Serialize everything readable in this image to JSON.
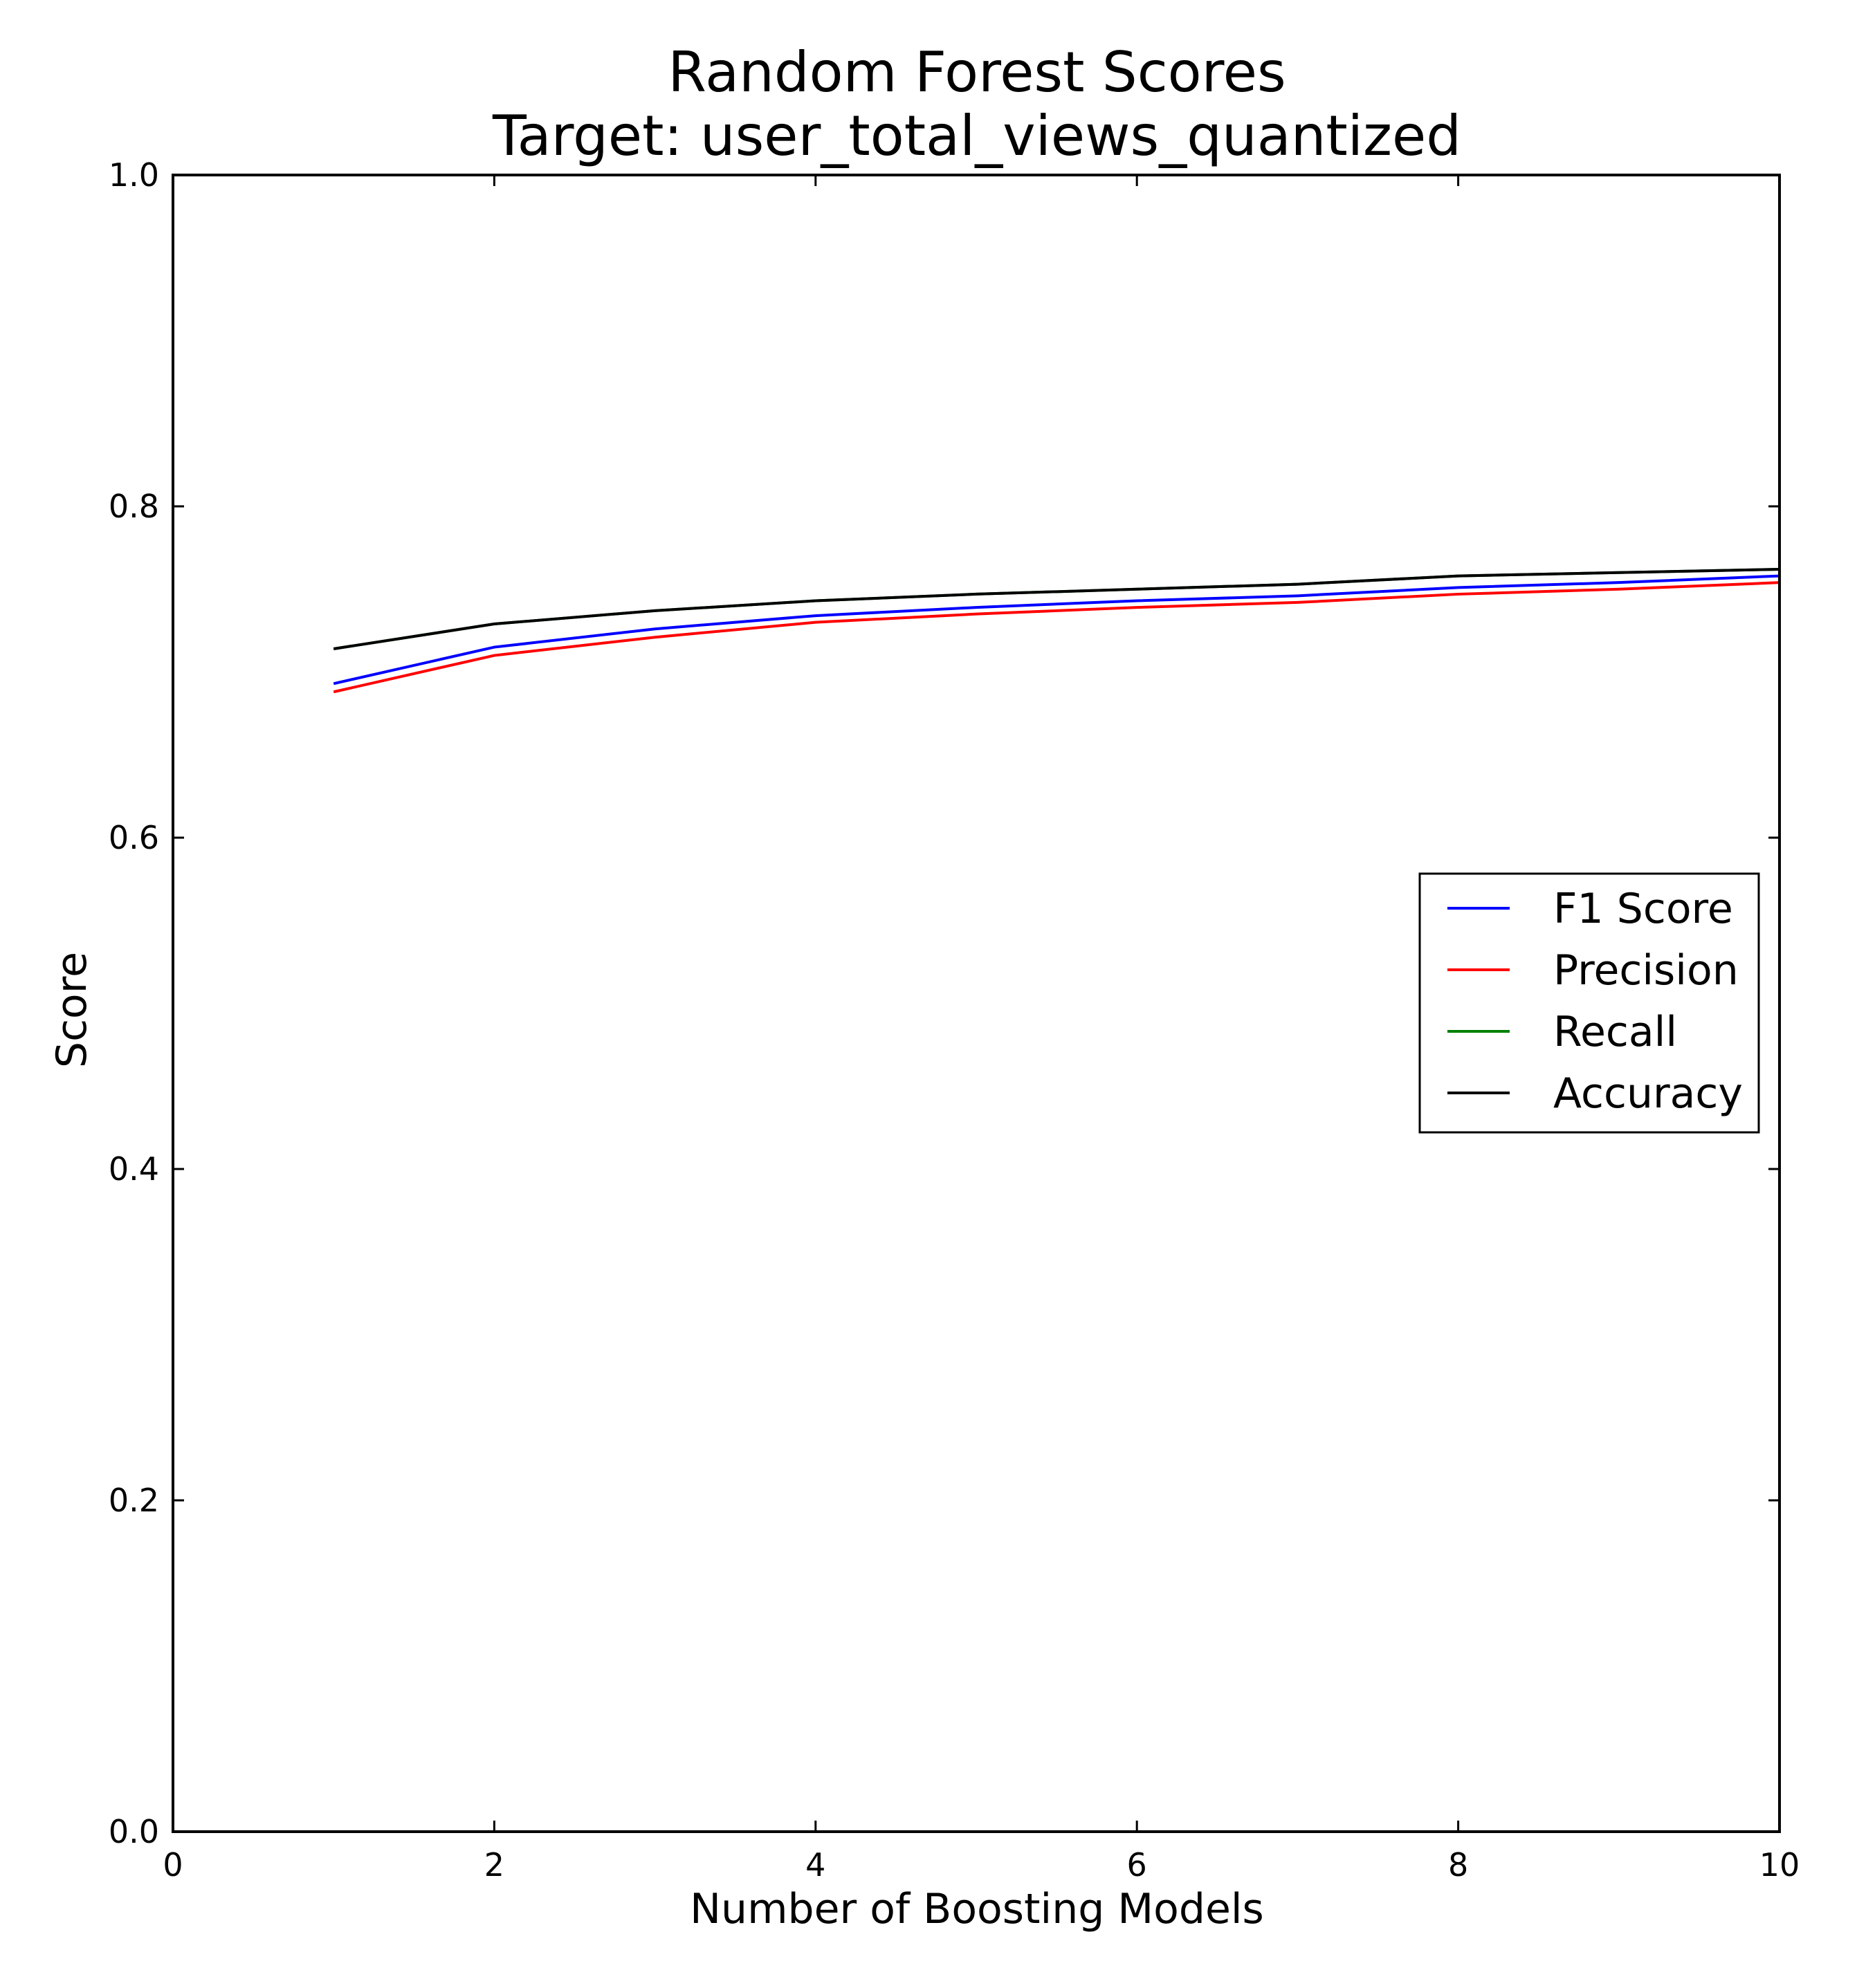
{
  "chart_data": {
    "type": "line",
    "title": "Random Forest Scores",
    "subtitle": "Target: user_total_views_quantized",
    "xlabel": "Number of Boosting Models",
    "ylabel": "Score",
    "xlim": [
      0,
      10
    ],
    "ylim": [
      0.0,
      1.0
    ],
    "xticks": [
      "0",
      "2",
      "4",
      "6",
      "8",
      "10"
    ],
    "yticks": [
      "0.0",
      "0.2",
      "0.4",
      "0.6",
      "0.8",
      "1.0"
    ],
    "grid": false,
    "legend_position": "center-right",
    "x": [
      1,
      2,
      3,
      4,
      5,
      6,
      7,
      8,
      9,
      10
    ],
    "series": [
      {
        "name": "F1 Score",
        "color": "#0000ff",
        "values": [
          0.693,
          0.715,
          0.726,
          0.734,
          0.739,
          0.743,
          0.746,
          0.751,
          0.754,
          0.758
        ]
      },
      {
        "name": "Precision",
        "color": "#ff0000",
        "values": [
          0.688,
          0.71,
          0.721,
          0.73,
          0.735,
          0.739,
          0.742,
          0.747,
          0.75,
          0.754
        ]
      },
      {
        "name": "Recall",
        "color": "#008000",
        "values": [
          0.714,
          0.729,
          0.737,
          0.743,
          0.747,
          0.75,
          0.753,
          0.758,
          0.76,
          0.762
        ]
      },
      {
        "name": "Accuracy",
        "color": "#000000",
        "values": [
          0.714,
          0.729,
          0.737,
          0.743,
          0.747,
          0.75,
          0.753,
          0.758,
          0.76,
          0.762
        ]
      }
    ]
  }
}
